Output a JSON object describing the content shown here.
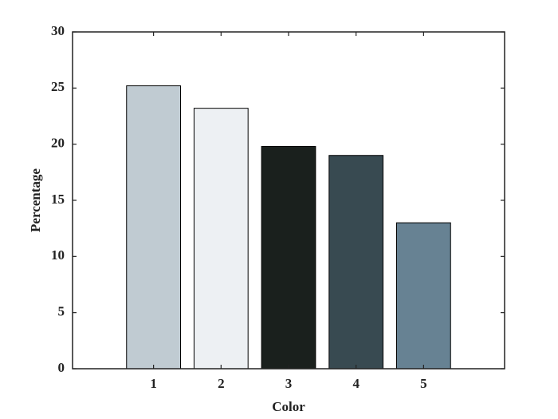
{
  "chart_data": {
    "type": "bar",
    "x": [
      1,
      2,
      3,
      4,
      5
    ],
    "values": [
      25.2,
      23.2,
      19.8,
      19.0,
      13.0
    ],
    "colors": [
      "#c0cbd2",
      "#edf0f3",
      "#1a201d",
      "#384a51",
      "#678293"
    ],
    "xlim": [
      -0.2,
      6.2
    ],
    "xticks": [
      1,
      2,
      3,
      4,
      5
    ],
    "ylim": [
      0,
      30
    ],
    "yticks": [
      0,
      5,
      10,
      15,
      20,
      25,
      30
    ],
    "xlabel": "Color",
    "ylabel": "Percentage"
  }
}
